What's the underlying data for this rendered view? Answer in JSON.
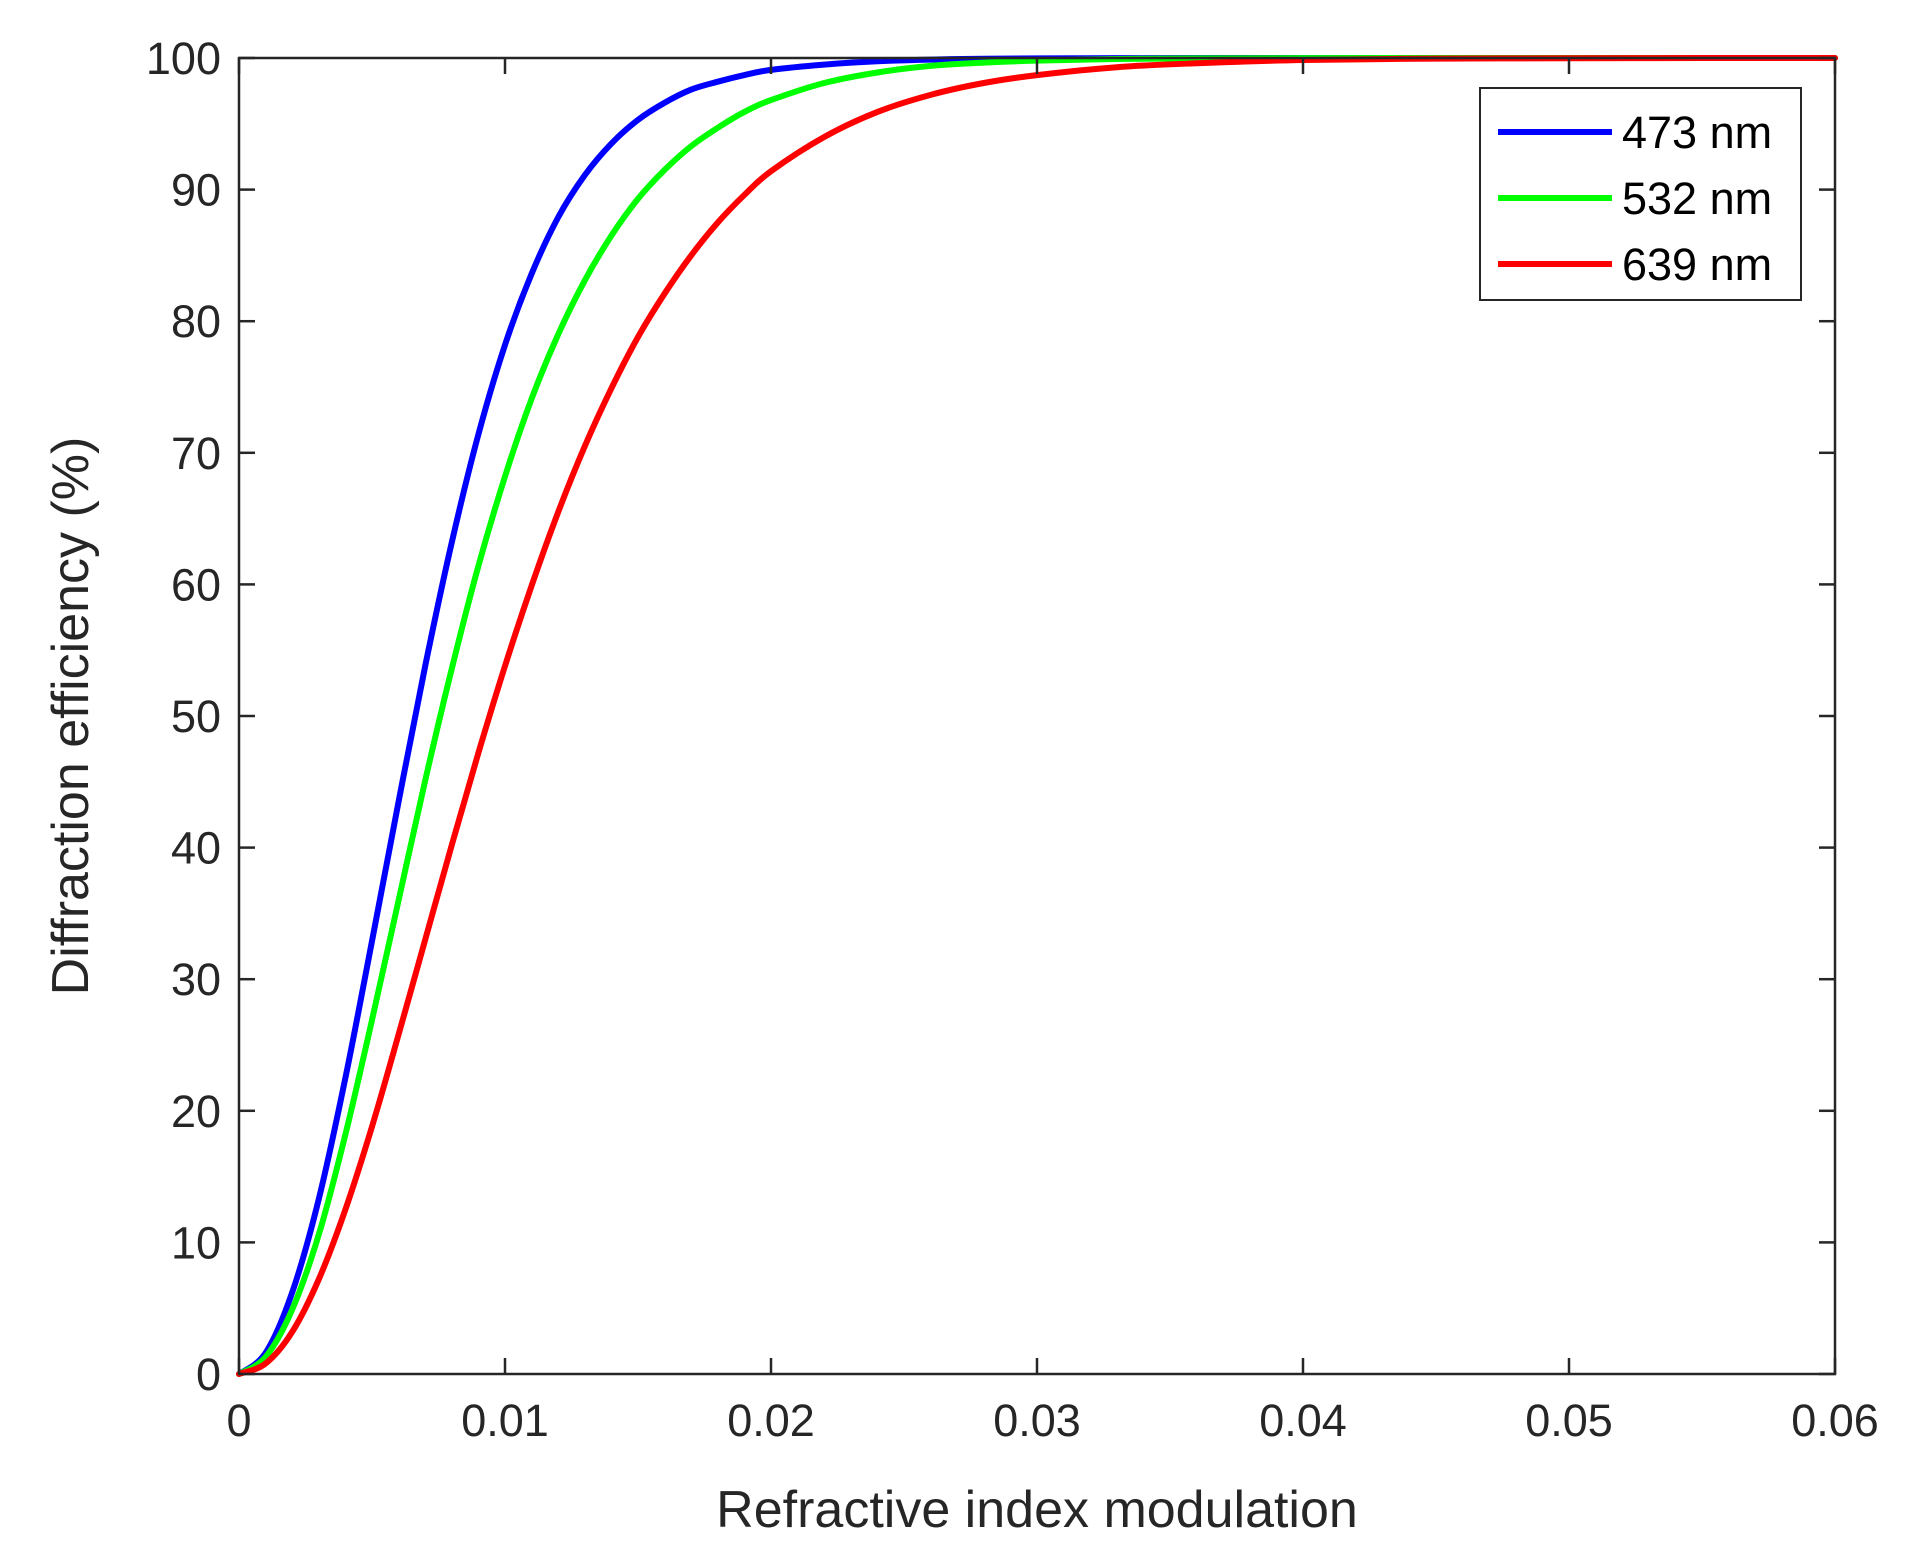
{
  "chart_data": {
    "type": "line",
    "title": "",
    "xlabel": "Refractive index modulation",
    "ylabel": "Diffraction efficiency (%)",
    "xlim": [
      0,
      0.06
    ],
    "ylim": [
      0,
      100
    ],
    "xticks": [
      0,
      0.01,
      0.02,
      0.03,
      0.04,
      0.05,
      0.06
    ],
    "xtick_labels": [
      "0",
      "0.01",
      "0.02",
      "0.03",
      "0.04",
      "0.05",
      "0.06"
    ],
    "yticks": [
      0,
      10,
      20,
      30,
      40,
      50,
      60,
      70,
      80,
      90,
      100
    ],
    "ytick_labels": [
      "0",
      "10",
      "20",
      "30",
      "40",
      "50",
      "60",
      "70",
      "80",
      "90",
      "100"
    ],
    "grid": false,
    "legend_position": "top-right",
    "series": [
      {
        "name": "473 nm",
        "color": "#0000ff",
        "x": [
          0,
          0.001,
          0.002,
          0.003,
          0.004,
          0.005,
          0.006,
          0.007,
          0.008,
          0.009,
          0.01,
          0.011,
          0.012,
          0.013,
          0.014,
          0.015,
          0.016,
          0.017,
          0.018,
          0.019,
          0.02,
          0.022,
          0.024,
          0.026,
          0.028,
          0.03,
          0.033,
          0.036,
          0.04,
          0.045,
          0.05,
          0.055,
          0.06
        ],
        "y": [
          0,
          1.6,
          6.2,
          13.3,
          22.5,
          32.9,
          43.5,
          53.8,
          63.2,
          71.4,
          78.2,
          83.6,
          87.9,
          91.1,
          93.5,
          95.3,
          96.6,
          97.6,
          98.2,
          98.7,
          99.1,
          99.5,
          99.75,
          99.88,
          99.94,
          99.97,
          99.99,
          100,
          100,
          100,
          100,
          100,
          100
        ]
      },
      {
        "name": "532 nm",
        "color": "#00ff00",
        "x": [
          0,
          0.001,
          0.002,
          0.003,
          0.004,
          0.005,
          0.006,
          0.007,
          0.008,
          0.009,
          0.01,
          0.011,
          0.012,
          0.013,
          0.014,
          0.015,
          0.016,
          0.017,
          0.018,
          0.019,
          0.02,
          0.022,
          0.024,
          0.026,
          0.028,
          0.03,
          0.033,
          0.036,
          0.04,
          0.045,
          0.05,
          0.055,
          0.06
        ],
        "y": [
          0,
          1.3,
          4.9,
          10.6,
          18.2,
          26.9,
          36.0,
          45.1,
          53.6,
          61.4,
          68.2,
          74.1,
          79.0,
          83.1,
          86.5,
          89.3,
          91.5,
          93.3,
          94.7,
          95.9,
          96.8,
          98.1,
          98.9,
          99.4,
          99.65,
          99.8,
          99.92,
          99.97,
          99.99,
          100,
          100,
          100,
          100
        ]
      },
      {
        "name": "639 nm",
        "color": "#ff0000",
        "x": [
          0,
          0.001,
          0.002,
          0.003,
          0.004,
          0.005,
          0.006,
          0.007,
          0.008,
          0.009,
          0.01,
          0.011,
          0.012,
          0.013,
          0.014,
          0.015,
          0.016,
          0.017,
          0.018,
          0.019,
          0.02,
          0.022,
          0.024,
          0.026,
          0.028,
          0.03,
          0.033,
          0.036,
          0.04,
          0.045,
          0.05,
          0.055,
          0.06
        ],
        "y": [
          0,
          0.8,
          3.2,
          7.2,
          12.5,
          18.8,
          25.8,
          33.0,
          40.2,
          47.2,
          53.8,
          59.9,
          65.5,
          70.5,
          74.9,
          78.8,
          82.1,
          85.0,
          87.5,
          89.6,
          91.4,
          94.0,
          95.9,
          97.2,
          98.1,
          98.7,
          99.3,
          99.6,
          99.85,
          99.95,
          99.98,
          100,
          100
        ]
      }
    ]
  }
}
